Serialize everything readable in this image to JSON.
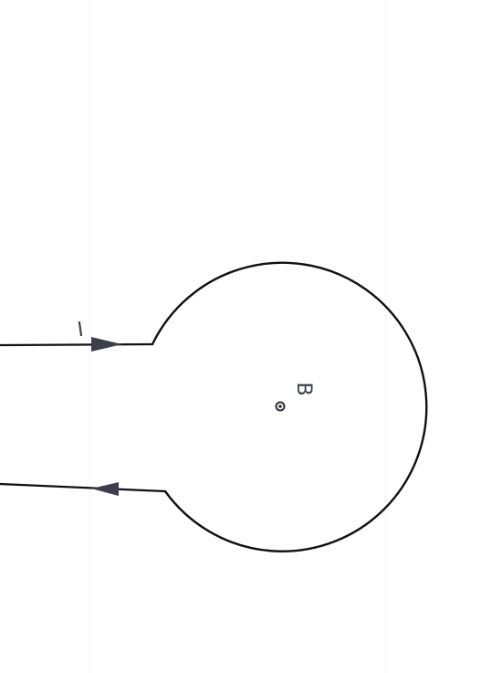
{
  "diagram": {
    "current_label": "I",
    "field_label": "B",
    "field_direction": "out-of-page",
    "stroke_color": "#111111",
    "arrow_color": "#3a3f4b",
    "background_color": "#ffffff",
    "elements": {
      "top_wire": {
        "current_direction": "right"
      },
      "bottom_wire": {
        "current_direction": "left"
      },
      "loop": {
        "shape": "circle"
      }
    }
  }
}
